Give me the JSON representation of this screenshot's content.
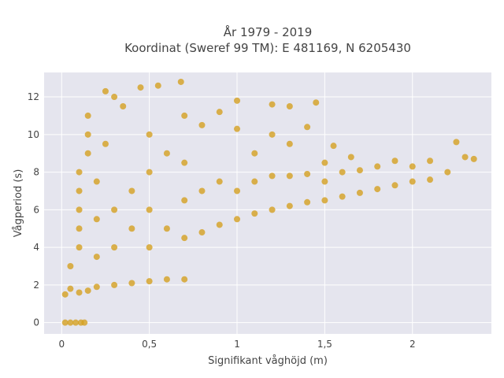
{
  "chart_data": {
    "type": "scatter",
    "title_line1": "År 1979 - 2019",
    "title_line2": "Koordinat (Sweref 99 TM): E 481169, N 6205430",
    "xlabel": "Signifikant våghöjd (m)",
    "ylabel": "Vågperiod (s)",
    "xlim": [
      -0.1,
      2.45
    ],
    "ylim": [
      -0.6,
      13.3
    ],
    "x_ticks": [
      0,
      0.5,
      1,
      1.5,
      2
    ],
    "x_tick_labels": [
      "0",
      "0,5",
      "1",
      "1,5",
      "2"
    ],
    "y_ticks": [
      0,
      2,
      4,
      6,
      8,
      10,
      12
    ],
    "y_tick_labels": [
      "0",
      "2",
      "4",
      "6",
      "8",
      "10",
      "12"
    ],
    "grid": true,
    "marker_color": "#D4A020",
    "background_color": "#E5E5EE",
    "series": [
      {
        "points": [
          [
            0.02,
            0.0
          ],
          [
            0.05,
            0.0
          ],
          [
            0.08,
            0.0
          ],
          [
            0.11,
            0.0
          ],
          [
            0.13,
            0.0
          ],
          [
            0.02,
            1.5
          ],
          [
            0.05,
            1.8
          ],
          [
            0.1,
            1.6
          ],
          [
            0.15,
            1.7
          ],
          [
            0.2,
            1.9
          ],
          [
            0.3,
            2.0
          ],
          [
            0.4,
            2.1
          ],
          [
            0.5,
            2.2
          ],
          [
            0.6,
            2.3
          ],
          [
            0.7,
            2.3
          ],
          [
            0.05,
            3.0
          ],
          [
            0.1,
            4.0
          ],
          [
            0.1,
            5.0
          ],
          [
            0.1,
            6.0
          ],
          [
            0.1,
            7.0
          ],
          [
            0.1,
            8.0
          ],
          [
            0.15,
            9.0
          ],
          [
            0.15,
            10.0
          ],
          [
            0.15,
            11.0
          ],
          [
            0.2,
            3.5
          ],
          [
            0.2,
            5.5
          ],
          [
            0.2,
            7.5
          ],
          [
            0.25,
            9.5
          ],
          [
            0.25,
            12.3
          ],
          [
            0.3,
            12.0
          ],
          [
            0.35,
            11.5
          ],
          [
            0.45,
            12.5
          ],
          [
            0.55,
            12.6
          ],
          [
            0.68,
            12.8
          ],
          [
            0.3,
            4.0
          ],
          [
            0.3,
            6.0
          ],
          [
            0.4,
            5.0
          ],
          [
            0.4,
            7.0
          ],
          [
            0.5,
            4.0
          ],
          [
            0.5,
            6.0
          ],
          [
            0.5,
            8.0
          ],
          [
            0.5,
            10.0
          ],
          [
            0.6,
            5.0
          ],
          [
            0.6,
            9.0
          ],
          [
            0.7,
            4.5
          ],
          [
            0.7,
            6.5
          ],
          [
            0.7,
            8.5
          ],
          [
            0.7,
            11.0
          ],
          [
            0.8,
            4.8
          ],
          [
            0.8,
            7.0
          ],
          [
            0.8,
            10.5
          ],
          [
            0.9,
            5.2
          ],
          [
            0.9,
            7.5
          ],
          [
            0.9,
            11.2
          ],
          [
            1.0,
            5.5
          ],
          [
            1.0,
            7.0
          ],
          [
            1.0,
            10.3
          ],
          [
            1.0,
            11.8
          ],
          [
            1.1,
            5.8
          ],
          [
            1.1,
            7.5
          ],
          [
            1.1,
            9.0
          ],
          [
            1.2,
            6.0
          ],
          [
            1.2,
            7.8
          ],
          [
            1.2,
            10.0
          ],
          [
            1.2,
            11.6
          ],
          [
            1.3,
            6.2
          ],
          [
            1.3,
            7.8
          ],
          [
            1.3,
            9.5
          ],
          [
            1.3,
            11.5
          ],
          [
            1.4,
            6.4
          ],
          [
            1.4,
            7.9
          ],
          [
            1.4,
            10.4
          ],
          [
            1.45,
            11.7
          ],
          [
            1.5,
            6.5
          ],
          [
            1.5,
            7.5
          ],
          [
            1.5,
            8.5
          ],
          [
            1.55,
            9.4
          ],
          [
            1.6,
            6.7
          ],
          [
            1.6,
            8.0
          ],
          [
            1.65,
            8.8
          ],
          [
            1.7,
            6.9
          ],
          [
            1.7,
            8.1
          ],
          [
            1.8,
            7.1
          ],
          [
            1.8,
            8.3
          ],
          [
            1.9,
            7.3
          ],
          [
            1.9,
            8.6
          ],
          [
            2.0,
            7.5
          ],
          [
            2.0,
            8.3
          ],
          [
            2.1,
            7.6
          ],
          [
            2.1,
            8.6
          ],
          [
            2.2,
            8.0
          ],
          [
            2.25,
            9.6
          ],
          [
            2.3,
            8.8
          ],
          [
            2.35,
            8.7
          ]
        ]
      }
    ]
  }
}
